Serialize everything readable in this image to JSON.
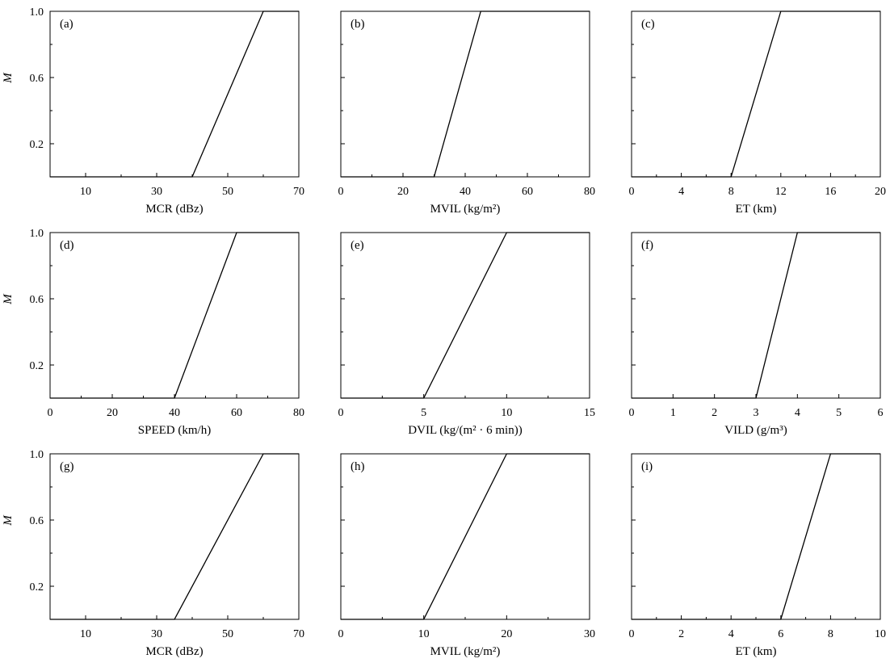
{
  "chart_data": [
    {
      "type": "line",
      "panel_label": "(a)",
      "xlabel": "MCR (dBz)",
      "ylabel": "M",
      "x": [
        0,
        40,
        60,
        70
      ],
      "y": [
        0,
        0,
        1,
        1
      ],
      "xlim": [
        0,
        70
      ],
      "ylim": [
        0,
        1
      ],
      "xticks": [
        10,
        30,
        50,
        70
      ],
      "xminor": [
        20,
        40,
        60
      ],
      "yticks": [
        0.2,
        0.6,
        1.0
      ],
      "ytick_labels": [
        "0.2",
        "0.6",
        "1.0"
      ],
      "yminor": [
        0.4,
        0.8
      ]
    },
    {
      "type": "line",
      "panel_label": "(b)",
      "xlabel": "MVIL (kg/m²)",
      "ylabel": "",
      "x": [
        0,
        30,
        45,
        80
      ],
      "y": [
        0,
        0,
        1,
        1
      ],
      "xlim": [
        0,
        80
      ],
      "ylim": [
        0,
        1
      ],
      "xticks": [
        0,
        20,
        40,
        60,
        80
      ],
      "xminor": [
        10,
        30,
        50,
        70
      ],
      "yticks": [
        0.2,
        0.6,
        1.0
      ],
      "ytick_labels": [],
      "yminor": [
        0.4,
        0.8
      ]
    },
    {
      "type": "line",
      "panel_label": "(c)",
      "xlabel": "ET (km)",
      "ylabel": "",
      "x": [
        0,
        8,
        12,
        20
      ],
      "y": [
        0,
        0,
        1,
        1
      ],
      "xlim": [
        0,
        20
      ],
      "ylim": [
        0,
        1
      ],
      "xticks": [
        0,
        4,
        8,
        12,
        16,
        20
      ],
      "xminor": [
        2,
        6,
        10,
        14,
        18
      ],
      "yticks": [
        0.2,
        0.6,
        1.0
      ],
      "ytick_labels": [],
      "yminor": [
        0.4,
        0.8
      ]
    },
    {
      "type": "line",
      "panel_label": "(d)",
      "xlabel": "SPEED (km/h)",
      "ylabel": "M",
      "x": [
        0,
        40,
        60,
        80
      ],
      "y": [
        0,
        0,
        1,
        1
      ],
      "xlim": [
        0,
        80
      ],
      "ylim": [
        0,
        1
      ],
      "xticks": [
        0,
        20,
        40,
        60,
        80
      ],
      "xminor": [
        10,
        30,
        50,
        70
      ],
      "yticks": [
        0.2,
        0.6,
        1.0
      ],
      "ytick_labels": [
        "0.2",
        "0.6",
        "1.0"
      ],
      "yminor": [
        0.4,
        0.8
      ]
    },
    {
      "type": "line",
      "panel_label": "(e)",
      "xlabel": "DVIL (kg/(m² · 6 min))",
      "ylabel": "",
      "x": [
        0,
        5,
        10,
        15
      ],
      "y": [
        0,
        0,
        1,
        1
      ],
      "xlim": [
        0,
        15
      ],
      "ylim": [
        0,
        1
      ],
      "xticks": [
        0,
        5,
        10,
        15
      ],
      "xminor": [
        2.5,
        7.5,
        12.5
      ],
      "yticks": [
        0.2,
        0.6,
        1.0
      ],
      "ytick_labels": [],
      "yminor": [
        0.4,
        0.8
      ]
    },
    {
      "type": "line",
      "panel_label": "(f)",
      "xlabel": "VILD (g/m³)",
      "ylabel": "",
      "x": [
        0,
        3,
        4,
        6
      ],
      "y": [
        0,
        0,
        1,
        1
      ],
      "xlim": [
        0,
        6
      ],
      "ylim": [
        0,
        1
      ],
      "xticks": [
        0,
        1,
        2,
        3,
        4,
        5,
        6
      ],
      "xminor": [],
      "yticks": [
        0.2,
        0.6,
        1.0
      ],
      "ytick_labels": [],
      "yminor": [
        0.4,
        0.8
      ]
    },
    {
      "type": "line",
      "panel_label": "(g)",
      "xlabel": "MCR (dBz)",
      "ylabel": "M",
      "x": [
        0,
        35,
        60,
        70
      ],
      "y": [
        0,
        0,
        1,
        1
      ],
      "xlim": [
        0,
        70
      ],
      "ylim": [
        0,
        1
      ],
      "xticks": [
        10,
        30,
        50,
        70
      ],
      "xminor": [
        20,
        40,
        60
      ],
      "yticks": [
        0.2,
        0.6,
        1.0
      ],
      "ytick_labels": [
        "0.2",
        "0.6",
        "1.0"
      ],
      "yminor": [
        0.4,
        0.8
      ]
    },
    {
      "type": "line",
      "panel_label": "(h)",
      "xlabel": "MVIL (kg/m²)",
      "ylabel": "",
      "x": [
        0,
        10,
        20,
        30
      ],
      "y": [
        0,
        0,
        1,
        1
      ],
      "xlim": [
        0,
        30
      ],
      "ylim": [
        0,
        1
      ],
      "xticks": [
        0,
        10,
        20,
        30
      ],
      "xminor": [
        5,
        15,
        25
      ],
      "yticks": [
        0.2,
        0.6,
        1.0
      ],
      "ytick_labels": [],
      "yminor": [
        0.4,
        0.8
      ]
    },
    {
      "type": "line",
      "panel_label": "(i)",
      "xlabel": "ET (km)",
      "ylabel": "",
      "x": [
        0,
        6,
        8,
        10
      ],
      "y": [
        0,
        0,
        1,
        1
      ],
      "xlim": [
        0,
        10
      ],
      "ylim": [
        0,
        1
      ],
      "xticks": [
        0,
        2,
        4,
        6,
        8,
        10
      ],
      "xminor": [
        1,
        3,
        5,
        7,
        9
      ],
      "yticks": [
        0.2,
        0.6,
        1.0
      ],
      "ytick_labels": [],
      "yminor": [
        0.4,
        0.8
      ]
    }
  ]
}
